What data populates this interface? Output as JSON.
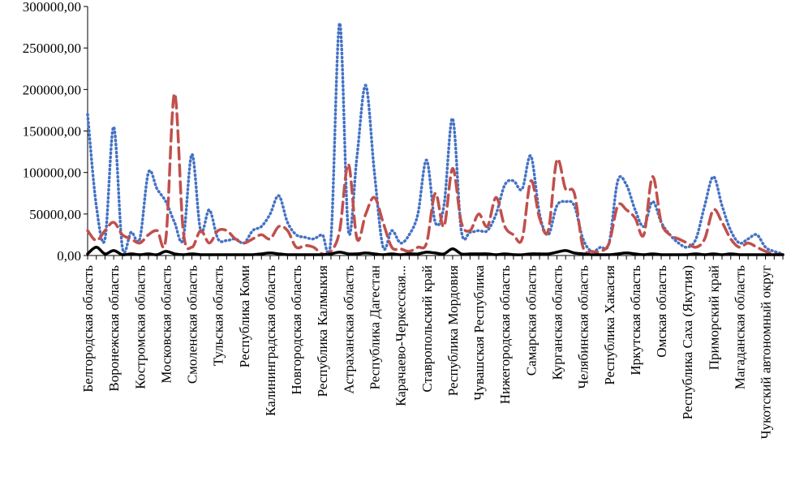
{
  "chart_data": {
    "type": "line",
    "title": "",
    "xlabel": "",
    "ylabel": "",
    "ylim": [
      0,
      300000
    ],
    "yticks": [
      "0,00",
      "50000,00",
      "100000,00",
      "150000,00",
      "200000,00",
      "250000,00",
      "300000,00"
    ],
    "ytick_values": [
      0,
      50000,
      100000,
      150000,
      200000,
      250000,
      300000
    ],
    "grid": false,
    "legend": "none",
    "tick_labels": [
      "Белгородская область",
      "Воронежская область",
      "Костромская область",
      "Московская область",
      "Смоленская область",
      "Тульская область",
      "Республика Коми",
      "Калининградская область",
      "Новгородская область",
      "Республика Калмыкия",
      "Астраханская область",
      "Республика Дагестан",
      "Карачаево-Черкесская...",
      "Ставропольский край",
      "Республика Мордовия",
      "Чувашская Республика",
      "Нижегородская область",
      "Самарская область",
      "Курганская область",
      "Челябинская область",
      "Республика Хакасия",
      "Иркутская область",
      "Омская область",
      "Республика Саха (Якутия)",
      "Приморский край",
      "Магаданская область",
      "Чукотский автономный округ"
    ],
    "x": [
      0,
      1,
      2,
      3,
      4,
      5,
      6,
      7,
      8,
      9,
      10,
      11,
      12,
      13,
      14,
      15,
      16,
      17,
      18,
      19,
      20,
      21,
      22,
      23,
      24,
      25,
      26,
      27,
      28,
      29,
      30,
      31,
      32,
      33,
      34,
      35,
      36,
      37,
      38,
      39,
      40,
      41,
      42,
      43,
      44,
      45,
      46,
      47,
      48,
      49,
      50,
      51,
      52,
      53,
      54,
      55,
      56,
      57,
      58,
      59,
      60,
      61,
      62,
      63,
      64,
      65,
      66,
      67,
      68,
      69,
      70,
      71,
      72,
      73,
      74,
      75,
      76,
      77,
      78,
      79,
      80
    ],
    "tick_positions": [
      0,
      3,
      6,
      9,
      12,
      15,
      18,
      21,
      24,
      27,
      30,
      33,
      36,
      39,
      42,
      45,
      48,
      51,
      54,
      57,
      60,
      63,
      66,
      69,
      72,
      75,
      78,
      80
    ],
    "series": [
      {
        "style": "dotted",
        "color": "#4472c4",
        "values": [
          170000,
          60000,
          20000,
          155000,
          10000,
          28000,
          20000,
          100000,
          80000,
          65000,
          40000,
          20000,
          122000,
          30000,
          55000,
          20000,
          18000,
          20000,
          15000,
          30000,
          35000,
          50000,
          72000,
          40000,
          25000,
          22000,
          20000,
          25000,
          20000,
          280000,
          30000,
          120000,
          205000,
          100000,
          10000,
          30000,
          15000,
          25000,
          50000,
          115000,
          40000,
          60000,
          165000,
          30000,
          28000,
          30000,
          30000,
          50000,
          85000,
          90000,
          80000,
          120000,
          50000,
          25000,
          60000,
          65000,
          60000,
          20000,
          5000,
          10000,
          15000,
          90000,
          85000,
          55000,
          35000,
          65000,
          40000,
          25000,
          15000,
          10000,
          20000,
          60000,
          95000,
          60000,
          30000,
          15000,
          20000,
          25000,
          10000,
          5000,
          2000
        ]
      },
      {
        "style": "dashed",
        "color": "#c0504d",
        "values": [
          30000,
          18000,
          30000,
          40000,
          25000,
          20000,
          15000,
          25000,
          30000,
          20000,
          195000,
          30000,
          10000,
          30000,
          15000,
          30000,
          30000,
          20000,
          15000,
          20000,
          25000,
          20000,
          35000,
          30000,
          10000,
          12000,
          10000,
          2000,
          5000,
          30000,
          110000,
          20000,
          50000,
          70000,
          40000,
          10000,
          8000,
          5000,
          10000,
          15000,
          75000,
          35000,
          105000,
          40000,
          30000,
          50000,
          35000,
          70000,
          35000,
          25000,
          20000,
          90000,
          45000,
          30000,
          115000,
          80000,
          75000,
          10000,
          5000,
          5000,
          15000,
          60000,
          55000,
          45000,
          25000,
          95000,
          40000,
          25000,
          20000,
          15000,
          10000,
          20000,
          55000,
          40000,
          20000,
          10000,
          15000,
          10000,
          5000,
          2000,
          1000
        ]
      },
      {
        "style": "solid",
        "color": "#000000",
        "values": [
          2000,
          10000,
          2000,
          6000,
          1000,
          2000,
          1000,
          2000,
          1000,
          5000,
          2000,
          1000,
          2000,
          1000,
          1000,
          1000,
          1000,
          1000,
          1000,
          1000,
          2000,
          3000,
          2000,
          1000,
          1000,
          1000,
          1000,
          1000,
          2000,
          4000,
          2000,
          2000,
          3000,
          2000,
          1000,
          2000,
          1000,
          2000,
          2000,
          4000,
          3000,
          2000,
          8000,
          2000,
          2000,
          2000,
          2000,
          1000,
          2000,
          1000,
          1000,
          2000,
          2000,
          2000,
          4000,
          6000,
          3000,
          2000,
          1000,
          1000,
          1000,
          2000,
          3000,
          2000,
          1000,
          2000,
          1000,
          1000,
          1000,
          1000,
          2000,
          1000,
          2000,
          1000,
          2000,
          1000,
          1000,
          1000,
          1000,
          1000,
          1000
        ]
      }
    ]
  }
}
